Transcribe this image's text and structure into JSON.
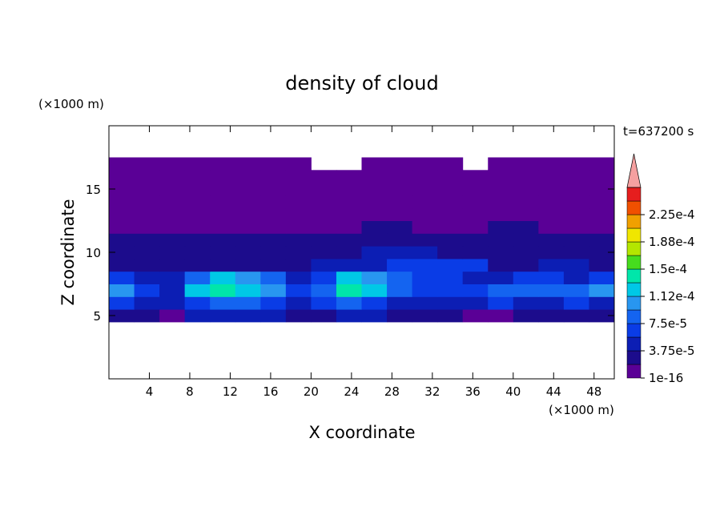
{
  "chart_data": {
    "type": "contour",
    "title": "density of cloud",
    "x_label": "X coordinate",
    "y_label": "Z coordinate",
    "x_unit": "(×1000 m)",
    "y_unit": "(×1000 m)",
    "time_label": "t=637200 s",
    "xlim": [
      0,
      50
    ],
    "ylim": [
      0,
      20
    ],
    "xticks": [
      4,
      8,
      12,
      16,
      20,
      24,
      28,
      32,
      36,
      40,
      44,
      48
    ],
    "yticks": [
      5,
      10,
      15
    ],
    "field": {
      "x": [
        1.25,
        3.75,
        6.25,
        8.75,
        11.25,
        13.75,
        16.25,
        18.75,
        21.25,
        23.75,
        26.25,
        28.75,
        31.25,
        33.75,
        36.25,
        38.75,
        41.25,
        43.75,
        46.25,
        48.75
      ],
      "z": [
        5,
        6,
        7,
        8,
        9,
        10,
        11,
        12,
        13,
        14,
        15,
        16,
        17
      ],
      "values": [
        [
          2.8e-05,
          2.8e-05,
          5e-06,
          4.7e-05,
          4.7e-05,
          4.7e-05,
          4.7e-05,
          2.8e-05,
          2.8e-05,
          4.7e-05,
          4.7e-05,
          2.8e-05,
          2.8e-05,
          2.8e-05,
          5e-06,
          5e-06,
          2.8e-05,
          2.8e-05,
          2.8e-05,
          2.8e-05
        ],
        [
          6.6e-05,
          4.7e-05,
          4.7e-05,
          6.6e-05,
          8.4e-05,
          8.4e-05,
          6.6e-05,
          4.7e-05,
          6.6e-05,
          8.4e-05,
          6.6e-05,
          4.7e-05,
          4.7e-05,
          4.7e-05,
          4.7e-05,
          6.6e-05,
          4.7e-05,
          4.7e-05,
          6.6e-05,
          4.7e-05
        ],
        [
          0.000103,
          6.6e-05,
          4.7e-05,
          0.000122,
          0.000141,
          0.000122,
          0.000103,
          6.6e-05,
          8.4e-05,
          0.000141,
          0.000122,
          8.4e-05,
          6.6e-05,
          6.6e-05,
          6.6e-05,
          8.4e-05,
          8.4e-05,
          8.4e-05,
          8.4e-05,
          0.000103
        ],
        [
          6.6e-05,
          4.7e-05,
          4.7e-05,
          8.4e-05,
          0.000122,
          0.000103,
          8.4e-05,
          4.7e-05,
          6.6e-05,
          0.000122,
          0.000103,
          8.4e-05,
          6.6e-05,
          6.6e-05,
          4.7e-05,
          4.7e-05,
          6.6e-05,
          6.6e-05,
          4.7e-05,
          6.6e-05
        ],
        [
          2.8e-05,
          2.8e-05,
          2.8e-05,
          2.8e-05,
          2.8e-05,
          2.8e-05,
          2.8e-05,
          2.8e-05,
          4.7e-05,
          4.7e-05,
          4.7e-05,
          6.6e-05,
          6.6e-05,
          6.6e-05,
          6.6e-05,
          2.8e-05,
          2.8e-05,
          4.7e-05,
          4.7e-05,
          2.8e-05
        ],
        [
          2.8e-05,
          2.8e-05,
          2.8e-05,
          2.8e-05,
          2.8e-05,
          2.8e-05,
          2.8e-05,
          2.8e-05,
          2.8e-05,
          2.8e-05,
          4.7e-05,
          4.7e-05,
          4.7e-05,
          2.8e-05,
          2.8e-05,
          2.8e-05,
          2.8e-05,
          2.8e-05,
          2.8e-05,
          2.8e-05
        ],
        [
          2.8e-05,
          2.8e-05,
          2.8e-05,
          2.8e-05,
          2.8e-05,
          2.8e-05,
          2.8e-05,
          2.8e-05,
          2.8e-05,
          2.8e-05,
          2.8e-05,
          2.8e-05,
          2.8e-05,
          2.8e-05,
          2.8e-05,
          2.8e-05,
          2.8e-05,
          2.8e-05,
          2.8e-05,
          2.8e-05
        ],
        [
          5e-06,
          5e-06,
          5e-06,
          5e-06,
          5e-06,
          5e-06,
          5e-06,
          5e-06,
          5e-06,
          5e-06,
          2.8e-05,
          2.8e-05,
          5e-06,
          5e-06,
          5e-06,
          2.8e-05,
          2.8e-05,
          5e-06,
          5e-06,
          5e-06
        ],
        [
          5e-06,
          5e-06,
          5e-06,
          5e-06,
          5e-06,
          5e-06,
          5e-06,
          5e-06,
          5e-06,
          5e-06,
          5e-06,
          5e-06,
          5e-06,
          5e-06,
          5e-06,
          5e-06,
          5e-06,
          5e-06,
          5e-06,
          5e-06
        ],
        [
          5e-06,
          5e-06,
          5e-06,
          5e-06,
          5e-06,
          5e-06,
          5e-06,
          5e-06,
          5e-06,
          5e-06,
          5e-06,
          5e-06,
          5e-06,
          5e-06,
          5e-06,
          5e-06,
          5e-06,
          5e-06,
          5e-06,
          5e-06
        ],
        [
          5e-06,
          5e-06,
          5e-06,
          5e-06,
          5e-06,
          5e-06,
          5e-06,
          5e-06,
          5e-06,
          5e-06,
          5e-06,
          5e-06,
          5e-06,
          5e-06,
          5e-06,
          5e-06,
          5e-06,
          5e-06,
          5e-06,
          5e-06
        ],
        [
          5e-06,
          5e-06,
          5e-06,
          5e-06,
          5e-06,
          5e-06,
          5e-06,
          5e-06,
          5e-06,
          5e-06,
          5e-06,
          5e-06,
          5e-06,
          5e-06,
          5e-06,
          5e-06,
          5e-06,
          5e-06,
          5e-06,
          5e-06
        ],
        [
          5e-06,
          5e-06,
          5e-06,
          5e-06,
          5e-06,
          5e-06,
          5e-06,
          5e-06,
          null,
          null,
          5e-06,
          5e-06,
          5e-06,
          5e-06,
          null,
          5e-06,
          5e-06,
          5e-06,
          5e-06,
          5e-06
        ]
      ]
    },
    "levels": [
      1e-16,
      1.875e-05,
      3.75e-05,
      5.625e-05,
      7.5e-05,
      9.375e-05,
      0.0001125,
      0.00013125,
      0.00015,
      0.00016875,
      0.0001875,
      0.00020625,
      0.000225,
      0.00024375
    ],
    "colors": [
      "#5a0096",
      "#1c0c8c",
      "#0c1eb4",
      "#0a3ce6",
      "#1464f0",
      "#2896f0",
      "#00c8e6",
      "#00e6aa",
      "#46dc1e",
      "#b4e600",
      "#f0e600",
      "#f0a000",
      "#f05000",
      "#e61e1e"
    ],
    "over_color": "#f5a0a0",
    "colorbar_ticks": [
      {
        "value": 1e-16,
        "label": "1e-16"
      },
      {
        "value": 3.75e-05,
        "label": "3.75e-5"
      },
      {
        "value": 7.5e-05,
        "label": "7.5e-5"
      },
      {
        "value": 0.0001125,
        "label": "1.12e-4"
      },
      {
        "value": 0.00015,
        "label": "1.5e-4"
      },
      {
        "value": 0.0001875,
        "label": "1.88e-4"
      },
      {
        "value": 0.000225,
        "label": "2.25e-4"
      }
    ]
  }
}
